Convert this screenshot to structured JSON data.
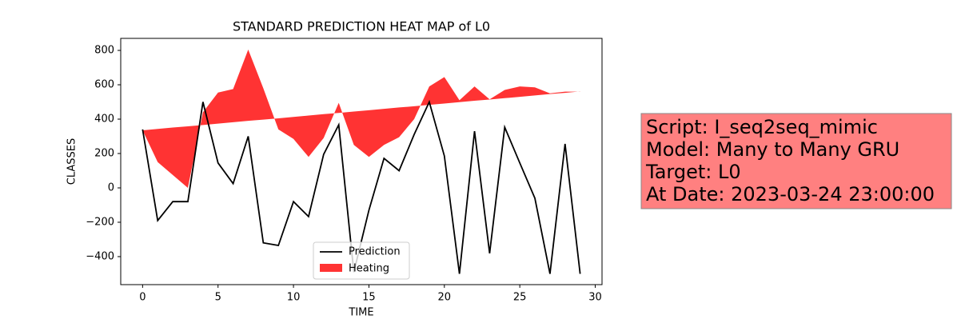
{
  "chart_data": {
    "type": "line",
    "title": "STANDARD PREDICTION HEAT MAP of L0",
    "x_label": "TIME",
    "y_label": "CLASSES",
    "x": [
      0,
      1,
      2,
      3,
      4,
      5,
      6,
      7,
      8,
      9,
      10,
      11,
      12,
      13,
      14,
      15,
      16,
      17,
      18,
      19,
      20,
      21,
      22,
      23,
      24,
      25,
      26,
      27,
      28,
      29
    ],
    "series": [
      {
        "name": "Prediction",
        "color": "#000000",
        "kind": "line",
        "values": [
          340,
          -190,
          -80,
          -80,
          500,
          145,
          25,
          300,
          -320,
          -335,
          -80,
          -167,
          195,
          367,
          -490,
          -130,
          172,
          100,
          311,
          500,
          186,
          -500,
          330,
          -381,
          353,
          145,
          -60,
          -500,
          256,
          -500
        ]
      },
      {
        "name": "Heating",
        "color": "#ff0000",
        "kind": "area",
        "values": [
          335,
          150,
          75,
          0,
          440,
          555,
          575,
          805,
          580,
          340,
          285,
          180,
          290,
          495,
          250,
          180,
          250,
          295,
          400,
          590,
          645,
          510,
          590,
          515,
          570,
          590,
          585,
          550,
          560,
          560
        ],
        "lower": [
          335,
          343,
          351,
          358,
          366,
          374,
          382,
          390,
          397,
          405,
          413,
          421,
          429,
          436,
          444,
          452,
          460,
          468,
          475,
          483,
          491,
          499,
          507,
          514,
          522,
          530,
          538,
          546,
          553,
          561
        ]
      }
    ],
    "xlim": [
      -1.45,
      30.45
    ],
    "ylim": [
      -563,
      870
    ],
    "xticks": [
      0,
      5,
      10,
      15,
      20,
      25,
      30
    ],
    "yticks": [
      {
        "value": -400,
        "label": "−400"
      },
      {
        "value": -200,
        "label": "−200"
      },
      0,
      200,
      400,
      600,
      800
    ],
    "legend": "lower center",
    "annotation": [
      "Script: I_seq2seq_mimic",
      "Model: Many to Many GRU",
      "Target: L0",
      "At Date: 2023-03-24 23:00:00"
    ]
  }
}
